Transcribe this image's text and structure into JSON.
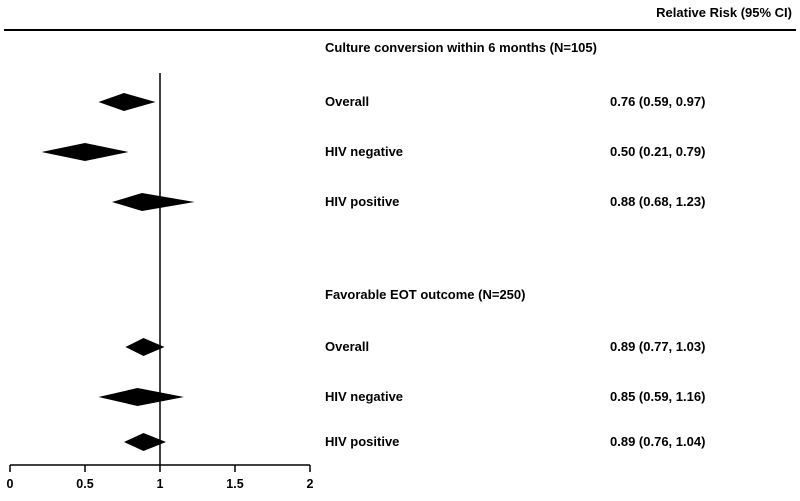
{
  "header": {
    "column_title": "Relative Risk (95% CI)"
  },
  "chart_data": {
    "type": "forest",
    "title": "",
    "xlabel": "",
    "ylabel": "",
    "xlim": [
      0,
      2
    ],
    "x_ticks": [
      0,
      0.5,
      1,
      1.5,
      2
    ],
    "x_tick_labels": [
      "0",
      "0.5",
      "1",
      "1.5",
      "2"
    ],
    "reference_line": 1,
    "grid": false,
    "legend": false,
    "groups": [
      {
        "title": "Culture conversion within 6 months (N=105)",
        "rows": [
          {
            "label": "Overall",
            "estimate": 0.76,
            "ci_low": 0.59,
            "ci_high": 0.97,
            "display": "0.76 (0.59, 0.97)"
          },
          {
            "label": "HIV negative",
            "estimate": 0.5,
            "ci_low": 0.21,
            "ci_high": 0.79,
            "display": "0.50 (0.21, 0.79)"
          },
          {
            "label": "HIV positive",
            "estimate": 0.88,
            "ci_low": 0.68,
            "ci_high": 1.23,
            "display": "0.88 (0.68, 1.23)"
          }
        ]
      },
      {
        "title": "Favorable EOT outcome (N=250)",
        "rows": [
          {
            "label": "Overall",
            "estimate": 0.89,
            "ci_low": 0.77,
            "ci_high": 1.03,
            "display": "0.89 (0.77, 1.03)"
          },
          {
            "label": "HIV negative",
            "estimate": 0.85,
            "ci_low": 0.59,
            "ci_high": 1.16,
            "display": "0.85 (0.59, 1.16)"
          },
          {
            "label": "HIV positive",
            "estimate": 0.89,
            "ci_low": 0.76,
            "ci_high": 1.04,
            "display": "0.89 (0.76, 1.04)"
          }
        ]
      }
    ],
    "colors": {
      "diamond": "#000000",
      "axis": "#000000",
      "text": "#000000",
      "background": "#ffffff"
    }
  }
}
